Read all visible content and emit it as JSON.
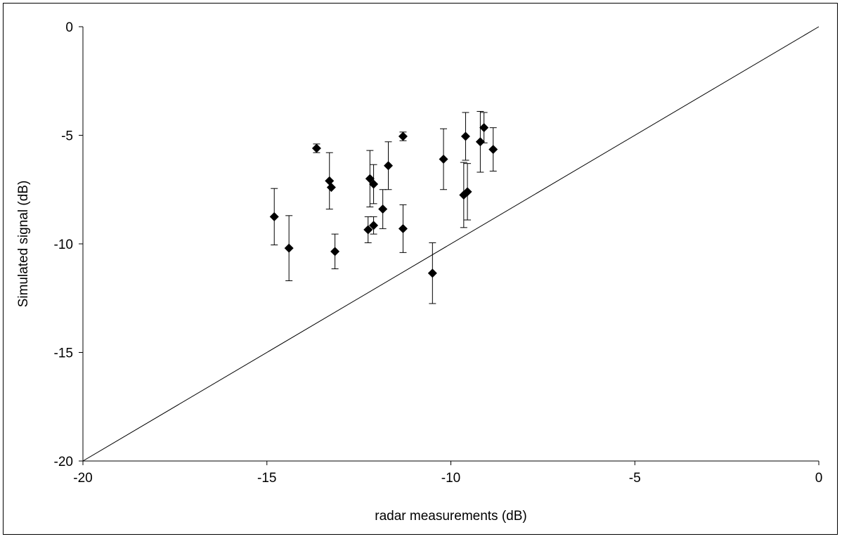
{
  "chart_data": {
    "type": "scatter",
    "title": "",
    "xlabel": "radar measurements (dB)",
    "ylabel": "Simulated signal (dB)",
    "xlim": [
      -20,
      0
    ],
    "ylim": [
      -20,
      0
    ],
    "x_ticks": [
      -20,
      -15,
      -10,
      -5,
      0
    ],
    "y_ticks": [
      0,
      -5,
      -10,
      -15,
      -20
    ],
    "x_tick_labels": [
      "-20",
      "-15",
      "-10",
      "-5",
      "0"
    ],
    "y_tick_labels": [
      "0",
      "-5",
      "-10",
      "-15",
      "-20"
    ],
    "grid": false,
    "legend": "none",
    "marker": "diamond",
    "reference_line": {
      "from": [
        -20,
        -20
      ],
      "to": [
        0,
        0
      ],
      "meaning": "1:1 line"
    },
    "points": [
      {
        "x": -14.8,
        "y": -8.75,
        "err_low": 1.3,
        "err_high": 1.3
      },
      {
        "x": -14.4,
        "y": -10.2,
        "err_low": 1.5,
        "err_high": 1.5
      },
      {
        "x": -13.65,
        "y": -5.6,
        "err_low": 0.2,
        "err_high": 0.2
      },
      {
        "x": -13.3,
        "y": -7.1,
        "err_low": 1.3,
        "err_high": 1.3
      },
      {
        "x": -13.25,
        "y": -7.4,
        "err_low": 0.0,
        "err_high": 0.0
      },
      {
        "x": -13.15,
        "y": -10.35,
        "err_low": 0.8,
        "err_high": 0.8
      },
      {
        "x": -12.2,
        "y": -7.0,
        "err_low": 1.3,
        "err_high": 1.3
      },
      {
        "x": -12.25,
        "y": -9.35,
        "err_low": 0.6,
        "err_high": 0.6
      },
      {
        "x": -12.1,
        "y": -7.25,
        "err_low": 0.9,
        "err_high": 0.9
      },
      {
        "x": -12.1,
        "y": -9.15,
        "err_low": 0.4,
        "err_high": 0.4
      },
      {
        "x": -11.85,
        "y": -8.4,
        "err_low": 0.9,
        "err_high": 0.9
      },
      {
        "x": -11.7,
        "y": -6.4,
        "err_low": 1.1,
        "err_high": 1.1
      },
      {
        "x": -11.3,
        "y": -5.05,
        "err_low": 0.2,
        "err_high": 0.2
      },
      {
        "x": -11.3,
        "y": -9.3,
        "err_low": 1.1,
        "err_high": 1.1
      },
      {
        "x": -10.5,
        "y": -11.35,
        "err_low": 1.4,
        "err_high": 1.4
      },
      {
        "x": -10.2,
        "y": -6.1,
        "err_low": 1.4,
        "err_high": 1.4
      },
      {
        "x": -9.65,
        "y": -7.75,
        "err_low": 1.5,
        "err_high": 1.5
      },
      {
        "x": -9.6,
        "y": -5.05,
        "err_low": 1.1,
        "err_high": 1.1
      },
      {
        "x": -9.55,
        "y": -7.6,
        "err_low": 1.3,
        "err_high": 1.3
      },
      {
        "x": -9.2,
        "y": -5.3,
        "err_low": 1.4,
        "err_high": 1.4
      },
      {
        "x": -9.1,
        "y": -4.65,
        "err_low": 0.7,
        "err_high": 0.7
      },
      {
        "x": -8.85,
        "y": -5.65,
        "err_low": 1.0,
        "err_high": 1.0
      }
    ]
  }
}
